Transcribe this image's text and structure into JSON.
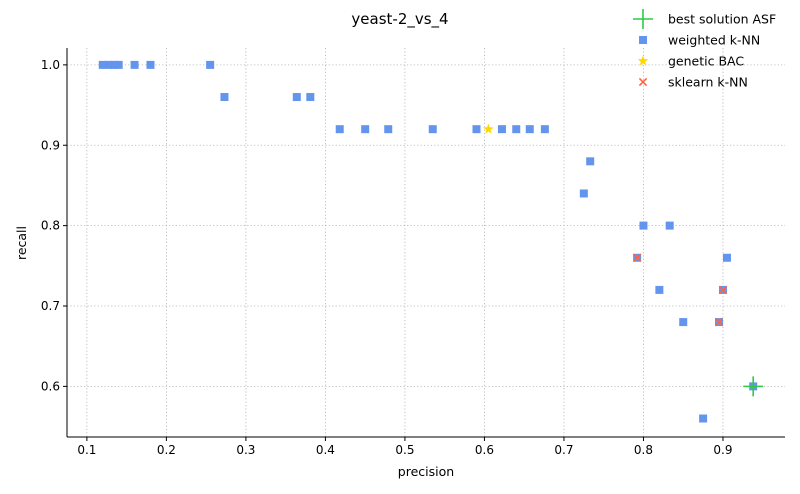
{
  "chart_data": {
    "type": "scatter",
    "title": "yeast-2_vs_4",
    "xlabel": "precision",
    "ylabel": "recall",
    "xlim": [
      0.075,
      0.978
    ],
    "ylim": [
      0.537,
      1.021
    ],
    "xticks": [
      0.1,
      0.2,
      0.3,
      0.4,
      0.5,
      0.6,
      0.7,
      0.8,
      0.9
    ],
    "xtick_labels": [
      "0.1",
      "0.2",
      "0.3",
      "0.4",
      "0.5",
      "0.6",
      "0.7",
      "0.8",
      "0.9"
    ],
    "yticks": [
      0.6,
      0.7,
      0.8,
      0.9,
      1.0
    ],
    "ytick_labels": [
      "0.6",
      "0.7",
      "0.8",
      "0.9",
      "1.0"
    ],
    "grid": true,
    "legend_position": "top-right",
    "series": [
      {
        "name": "best solution ASF",
        "marker": "plus",
        "color": "#2ecc40",
        "points": [
          [
            0.938,
            0.6
          ]
        ]
      },
      {
        "name": "weighted k-NN",
        "marker": "square",
        "color": "#6495ed",
        "points": [
          [
            0.12,
            1.0
          ],
          [
            0.128,
            1.0
          ],
          [
            0.134,
            1.0
          ],
          [
            0.14,
            1.0
          ],
          [
            0.16,
            1.0
          ],
          [
            0.18,
            1.0
          ],
          [
            0.255,
            1.0
          ],
          [
            0.273,
            0.96
          ],
          [
            0.364,
            0.96
          ],
          [
            0.381,
            0.96
          ],
          [
            0.418,
            0.92
          ],
          [
            0.45,
            0.92
          ],
          [
            0.479,
            0.92
          ],
          [
            0.535,
            0.92
          ],
          [
            0.59,
            0.92
          ],
          [
            0.622,
            0.92
          ],
          [
            0.64,
            0.92
          ],
          [
            0.657,
            0.92
          ],
          [
            0.676,
            0.92
          ],
          [
            0.733,
            0.88
          ],
          [
            0.725,
            0.84
          ],
          [
            0.8,
            0.8
          ],
          [
            0.833,
            0.8
          ],
          [
            0.792,
            0.76
          ],
          [
            0.905,
            0.76
          ],
          [
            0.82,
            0.72
          ],
          [
            0.9,
            0.72
          ],
          [
            0.85,
            0.68
          ],
          [
            0.895,
            0.68
          ],
          [
            0.875,
            0.56
          ],
          [
            0.938,
            0.6
          ]
        ]
      },
      {
        "name": "genetic BAC",
        "marker": "star",
        "color": "#ffd700",
        "points": [
          [
            0.605,
            0.92
          ]
        ]
      },
      {
        "name": "sklearn k-NN",
        "marker": "x",
        "color": "#ff6347",
        "points": [
          [
            0.792,
            0.76
          ],
          [
            0.9,
            0.72
          ],
          [
            0.895,
            0.68
          ]
        ]
      }
    ]
  }
}
